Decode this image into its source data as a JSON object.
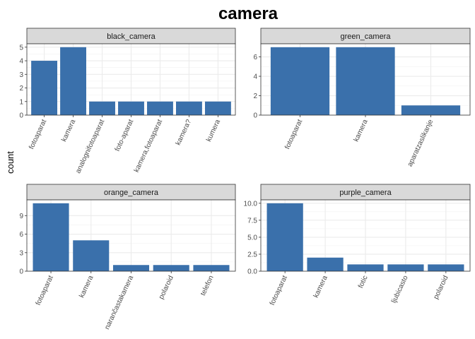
{
  "chart_title": "camera",
  "y_axis_label": "count",
  "colors": {
    "bar": "#3a70ab",
    "strip_fill": "#d9d9d9",
    "panel_border": "#333333",
    "grid": "#ebebeb"
  },
  "chart_data": [
    {
      "type": "bar",
      "facet": "black_camera",
      "categories": [
        "fotoaparat",
        "kamera",
        "analognifotoaparat",
        "foto-aparat",
        "kamera,fotoaparat",
        "kamera?",
        "kumera"
      ],
      "values": [
        4,
        5,
        1,
        1,
        1,
        1,
        1
      ],
      "ylim": [
        0,
        5.25
      ],
      "yticks": [
        0,
        1,
        2,
        3,
        4,
        5
      ],
      "ytick_labels": [
        "0",
        "1",
        "2",
        "3",
        "4",
        "5"
      ],
      "grid": true
    },
    {
      "type": "bar",
      "facet": "green_camera",
      "categories": [
        "fotoaparat",
        "kamera",
        "aparatzaslikanje"
      ],
      "values": [
        7,
        7,
        1
      ],
      "ylim": [
        0,
        7.35
      ],
      "yticks": [
        0,
        2,
        4,
        6
      ],
      "ytick_labels": [
        "0",
        "2",
        "4",
        "6"
      ],
      "grid": true
    },
    {
      "type": "bar",
      "facet": "orange_camera",
      "categories": [
        "fotoaparat",
        "kamera",
        "narančastakamera",
        "polaroid",
        "telefon"
      ],
      "values": [
        11,
        5,
        1,
        1,
        1
      ],
      "ylim": [
        0,
        11.55
      ],
      "yticks": [
        0,
        3,
        6,
        9
      ],
      "ytick_labels": [
        "0",
        "3",
        "6",
        "9"
      ],
      "grid": true
    },
    {
      "type": "bar",
      "facet": "purple_camera",
      "categories": [
        "fotoaparat",
        "kamera",
        "fotic",
        "ljubicasto",
        "polaroid"
      ],
      "values": [
        10,
        2,
        1,
        1,
        1
      ],
      "ylim": [
        0,
        10.5
      ],
      "yticks": [
        0,
        2.5,
        5,
        7.5,
        10
      ],
      "ytick_labels": [
        "0.0",
        "2.5",
        "5.0",
        "7.5",
        "10.0"
      ],
      "grid": true
    }
  ]
}
